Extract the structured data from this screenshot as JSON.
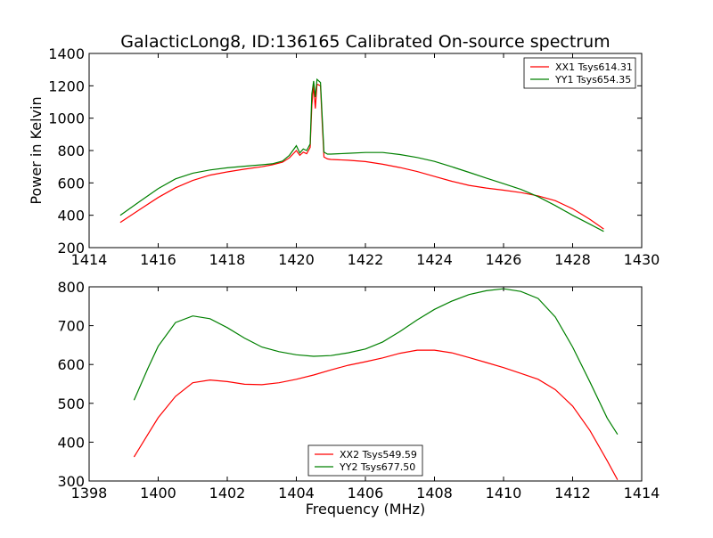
{
  "figure": {
    "title": "GalacticLong8, ID:136165 Calibrated On-source spectrum",
    "ylabel": "Power in Kelvin",
    "xlabel": "Frequency (MHz)"
  },
  "chart_data": [
    {
      "type": "line",
      "title": "GalacticLong8, ID:136165 Calibrated On-source spectrum",
      "xlabel": "",
      "ylabel": "Power in Kelvin",
      "xlim": [
        1414,
        1430
      ],
      "ylim": [
        200,
        1400
      ],
      "xticks": [
        1414,
        1416,
        1418,
        1420,
        1422,
        1424,
        1426,
        1428,
        1430
      ],
      "yticks": [
        200,
        400,
        600,
        800,
        1000,
        1200,
        1400
      ],
      "grid": false,
      "legend_position": "top-right",
      "series": [
        {
          "name": "XX1 Tsys614.31",
          "color": "#ff0000",
          "points": [
            [
              1414.9,
              355
            ],
            [
              1415.5,
              440
            ],
            [
              1416.0,
              510
            ],
            [
              1416.5,
              570
            ],
            [
              1417.0,
              615
            ],
            [
              1417.5,
              648
            ],
            [
              1418.0,
              668
            ],
            [
              1418.5,
              685
            ],
            [
              1419.0,
              700
            ],
            [
              1419.3,
              712
            ],
            [
              1419.6,
              728
            ],
            [
              1419.8,
              755
            ],
            [
              1420.0,
              800
            ],
            [
              1420.1,
              770
            ],
            [
              1420.2,
              790
            ],
            [
              1420.3,
              780
            ],
            [
              1420.4,
              820
            ],
            [
              1420.45,
              1080
            ],
            [
              1420.5,
              1200
            ],
            [
              1420.55,
              1060
            ],
            [
              1420.6,
              1210
            ],
            [
              1420.7,
              1200
            ],
            [
              1420.75,
              960
            ],
            [
              1420.8,
              760
            ],
            [
              1420.9,
              748
            ],
            [
              1421.0,
              745
            ],
            [
              1421.5,
              740
            ],
            [
              1422.0,
              732
            ],
            [
              1422.5,
              715
            ],
            [
              1423.0,
              695
            ],
            [
              1423.5,
              670
            ],
            [
              1424.0,
              640
            ],
            [
              1424.5,
              610
            ],
            [
              1425.0,
              585
            ],
            [
              1425.5,
              568
            ],
            [
              1426.0,
              555
            ],
            [
              1426.5,
              540
            ],
            [
              1427.0,
              520
            ],
            [
              1427.5,
              490
            ],
            [
              1428.0,
              440
            ],
            [
              1428.5,
              375
            ],
            [
              1428.9,
              315
            ]
          ]
        },
        {
          "name": "YY1 Tsys654.35",
          "color": "#008000",
          "points": [
            [
              1414.9,
              400
            ],
            [
              1415.5,
              490
            ],
            [
              1416.0,
              565
            ],
            [
              1416.5,
              625
            ],
            [
              1417.0,
              660
            ],
            [
              1417.5,
              680
            ],
            [
              1418.0,
              693
            ],
            [
              1418.5,
              703
            ],
            [
              1419.0,
              712
            ],
            [
              1419.3,
              718
            ],
            [
              1419.6,
              735
            ],
            [
              1419.8,
              770
            ],
            [
              1420.0,
              830
            ],
            [
              1420.1,
              785
            ],
            [
              1420.2,
              810
            ],
            [
              1420.3,
              800
            ],
            [
              1420.4,
              840
            ],
            [
              1420.45,
              1150
            ],
            [
              1420.5,
              1230
            ],
            [
              1420.55,
              1130
            ],
            [
              1420.6,
              1240
            ],
            [
              1420.7,
              1220
            ],
            [
              1420.75,
              1000
            ],
            [
              1420.8,
              790
            ],
            [
              1420.9,
              778
            ],
            [
              1421.0,
              778
            ],
            [
              1421.5,
              783
            ],
            [
              1422.0,
              788
            ],
            [
              1422.5,
              788
            ],
            [
              1423.0,
              775
            ],
            [
              1423.5,
              757
            ],
            [
              1424.0,
              733
            ],
            [
              1424.5,
              700
            ],
            [
              1425.0,
              665
            ],
            [
              1425.5,
              630
            ],
            [
              1426.0,
              595
            ],
            [
              1426.5,
              560
            ],
            [
              1427.0,
              515
            ],
            [
              1427.5,
              460
            ],
            [
              1428.0,
              400
            ],
            [
              1428.5,
              345
            ],
            [
              1428.9,
              300
            ]
          ]
        }
      ]
    },
    {
      "type": "line",
      "title": "",
      "xlabel": "Frequency (MHz)",
      "ylabel": "",
      "xlim": [
        1398,
        1414
      ],
      "ylim": [
        300,
        800
      ],
      "xticks": [
        1398,
        1400,
        1402,
        1404,
        1406,
        1408,
        1410,
        1412,
        1414
      ],
      "yticks": [
        300,
        400,
        500,
        600,
        700,
        800
      ],
      "grid": false,
      "legend_position": "bottom-center",
      "series": [
        {
          "name": "XX2 Tsys549.59",
          "color": "#ff0000",
          "points": [
            [
              1399.3,
              362
            ],
            [
              1399.7,
              420
            ],
            [
              1400.0,
              463
            ],
            [
              1400.5,
              518
            ],
            [
              1401.0,
              553
            ],
            [
              1401.5,
              560
            ],
            [
              1402.0,
              556
            ],
            [
              1402.5,
              549
            ],
            [
              1403.0,
              548
            ],
            [
              1403.5,
              553
            ],
            [
              1404.0,
              562
            ],
            [
              1404.5,
              573
            ],
            [
              1405.0,
              586
            ],
            [
              1405.5,
              598
            ],
            [
              1406.0,
              607
            ],
            [
              1406.5,
              617
            ],
            [
              1407.0,
              629
            ],
            [
              1407.5,
              637
            ],
            [
              1408.0,
              637
            ],
            [
              1408.5,
              630
            ],
            [
              1409.0,
              618
            ],
            [
              1409.5,
              605
            ],
            [
              1410.0,
              592
            ],
            [
              1410.5,
              577
            ],
            [
              1411.0,
              562
            ],
            [
              1411.5,
              535
            ],
            [
              1412.0,
              493
            ],
            [
              1412.5,
              430
            ],
            [
              1413.0,
              352
            ],
            [
              1413.3,
              303
            ]
          ]
        },
        {
          "name": "YY2 Tsys677.50",
          "color": "#008000",
          "points": [
            [
              1399.3,
              508
            ],
            [
              1399.7,
              590
            ],
            [
              1400.0,
              647
            ],
            [
              1400.5,
              708
            ],
            [
              1401.0,
              725
            ],
            [
              1401.5,
              718
            ],
            [
              1402.0,
              695
            ],
            [
              1402.5,
              668
            ],
            [
              1403.0,
              645
            ],
            [
              1403.5,
              633
            ],
            [
              1404.0,
              625
            ],
            [
              1404.5,
              621
            ],
            [
              1405.0,
              623
            ],
            [
              1405.5,
              630
            ],
            [
              1406.0,
              640
            ],
            [
              1406.5,
              658
            ],
            [
              1407.0,
              685
            ],
            [
              1407.5,
              715
            ],
            [
              1408.0,
              742
            ],
            [
              1408.5,
              763
            ],
            [
              1409.0,
              780
            ],
            [
              1409.5,
              790
            ],
            [
              1410.0,
              795
            ],
            [
              1410.5,
              788
            ],
            [
              1411.0,
              770
            ],
            [
              1411.5,
              722
            ],
            [
              1412.0,
              645
            ],
            [
              1412.5,
              555
            ],
            [
              1413.0,
              462
            ],
            [
              1413.3,
              420
            ]
          ]
        }
      ]
    }
  ]
}
